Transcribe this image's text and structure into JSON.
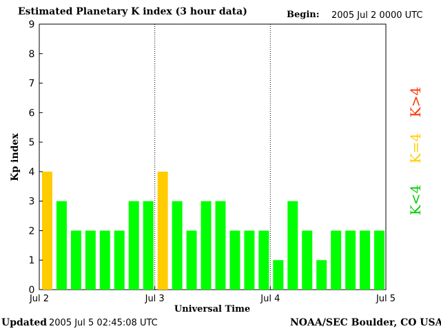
{
  "header": {
    "title": "Estimated Planetary K index (3 hour data)",
    "begin_label": "Begin:",
    "begin_value": "2005 Jul 2 0000 UTC"
  },
  "footer": {
    "updated_label": "Updated",
    "updated_value": "2005 Jul  5 02:45:08 UTC",
    "credit": "NOAA/SEC Boulder, CO USA"
  },
  "legend": {
    "greater": "K>4",
    "equal": "K=4",
    "less": "K<4"
  },
  "colors": {
    "k_less_4": "#00ff00",
    "k_equal_4": "#ffcc00",
    "k_greater_4": "#ff3300"
  },
  "chart_data": {
    "type": "bar",
    "title": "Estimated Planetary K index (3 hour data)",
    "xlabel": "Universal Time",
    "ylabel": "Kp index",
    "ylim": [
      0,
      9
    ],
    "yticks": [
      "0",
      "1",
      "2",
      "3",
      "4",
      "5",
      "6",
      "7",
      "8",
      "9"
    ],
    "xticks": [
      "Jul 2",
      "Jul 3",
      "Jul 4",
      "Jul 5"
    ],
    "interval_hours": 3,
    "values": [
      4,
      3,
      2,
      2,
      2,
      2,
      3,
      3,
      4,
      3,
      2,
      3,
      3,
      2,
      2,
      2,
      1,
      3,
      2,
      1,
      2,
      2,
      2,
      2
    ],
    "day_separators": [
      "Jul 3",
      "Jul 4"
    ],
    "grid": false
  }
}
